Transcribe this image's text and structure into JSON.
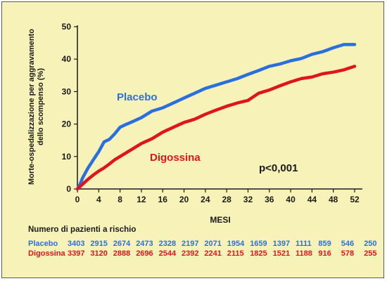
{
  "chart_data": {
    "type": "line",
    "title": "",
    "xlabel": "MESI",
    "ylabel_lines": [
      "Morte-ospedalizzazione per aggravamento",
      "dello scompenso (%)"
    ],
    "xlim": [
      0,
      52
    ],
    "ylim": [
      0,
      50
    ],
    "x_ticks": [
      0,
      4,
      8,
      12,
      16,
      20,
      24,
      28,
      32,
      36,
      40,
      44,
      48,
      52
    ],
    "y_ticks": [
      0,
      10,
      20,
      30,
      40,
      50
    ],
    "grid": false,
    "annotation": "p<0,001",
    "series": [
      {
        "name": "Placebo",
        "color": "#2a6fe0",
        "x": [
          0,
          0.5,
          1,
          2,
          3,
          4,
          5,
          6,
          7,
          8,
          9,
          10,
          12,
          14,
          16,
          18,
          20,
          22,
          24,
          26,
          28,
          30,
          32,
          34,
          36,
          38,
          40,
          42,
          44,
          46,
          48,
          50,
          52
        ],
        "values": [
          0,
          1.5,
          3.5,
          6.5,
          9,
          11.5,
          14.5,
          15.3,
          17,
          19,
          19.8,
          20.5,
          22,
          24,
          25,
          26.5,
          28,
          29.5,
          31,
          32,
          33,
          34,
          35.3,
          36.5,
          37.8,
          38.5,
          39.5,
          40.2,
          41.5,
          42.3,
          43.5,
          44.5,
          44.5
        ]
      },
      {
        "name": "Digossina",
        "color": "#e0141e",
        "x": [
          0,
          1,
          2,
          3,
          4,
          5,
          6,
          7,
          8,
          9,
          10,
          12,
          14,
          16,
          18,
          20,
          22,
          24,
          26,
          28,
          30,
          32,
          34,
          36,
          38,
          40,
          42,
          44,
          46,
          48,
          50,
          52
        ],
        "values": [
          0,
          1.5,
          3,
          4.3,
          5.5,
          6.5,
          7.7,
          9,
          10,
          11,
          12,
          14,
          15.5,
          17.5,
          19,
          20.5,
          21.5,
          23,
          24.3,
          25.5,
          26.5,
          27.3,
          29.5,
          30.5,
          31.8,
          33,
          34,
          34.5,
          35.5,
          36,
          36.7,
          37.8
        ]
      }
    ]
  },
  "risk_table": {
    "title": "Numero di pazienti a rischio",
    "rows": [
      {
        "name": "Placebo",
        "color": "#2a6fe0",
        "values": [
          "3403",
          "2915",
          "2674",
          "2473",
          "2328",
          "2197",
          "2071",
          "1954",
          "1659",
          "1397",
          "1111",
          "859",
          "546",
          "250"
        ]
      },
      {
        "name": "Digossina",
        "color": "#e0141e",
        "values": [
          "3397",
          "3120",
          "2888",
          "2696",
          "2544",
          "2392",
          "2241",
          "2115",
          "1825",
          "1521",
          "1188",
          "916",
          "578",
          "255"
        ]
      }
    ]
  }
}
